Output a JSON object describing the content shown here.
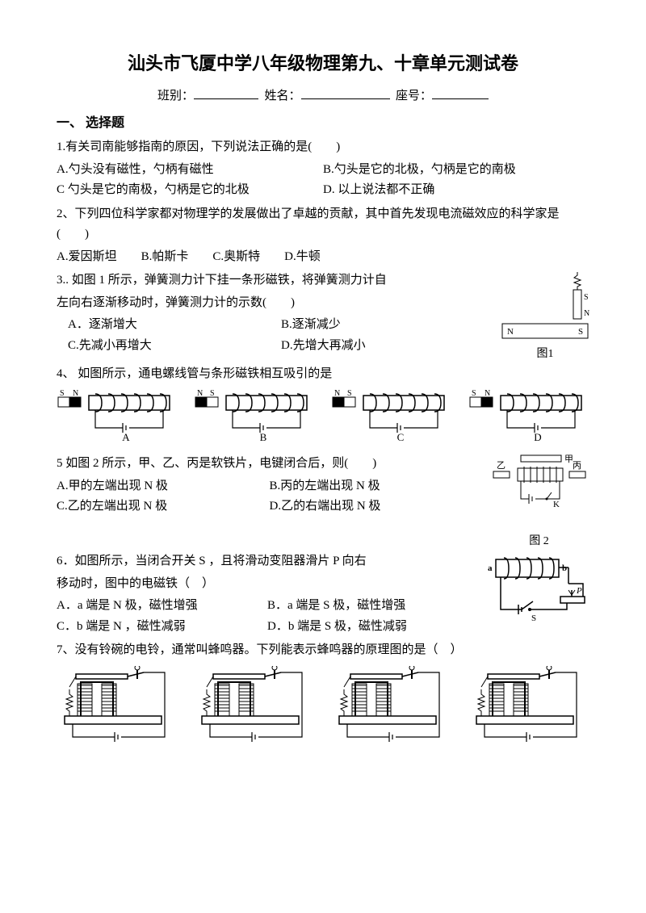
{
  "title": "汕头市飞厦中学八年级物理第九、十章单元测试卷",
  "header": {
    "class_label": "班别：",
    "name_label": "姓名：",
    "seat_label": "座号："
  },
  "section1": "一、 选择题",
  "q1": {
    "stem": "1.有关司南能够指南的原因，下列说法正确的是(　　)",
    "a": "A.勺头没有磁性，勺柄有磁性",
    "b": "B.勺头是它的北极，勺柄是它的南极",
    "c": "C 勺头是它的南极，勺柄是它的北极",
    "d": "D. 以上说法都不正确"
  },
  "q2": {
    "stem": "2、下列四位科学家都对物理学的发展做出了卓越的贡献，其中首先发现电流磁效应的科学家是(　　)",
    "a": "A.爱因斯坦",
    "b": "B.帕斯卡",
    "c": "C.奥斯特",
    "d": "D.牛顿"
  },
  "q3": {
    "stem1": "3.. 如图 1 所示，弹簧测力计下挂一条形磁铁，将弹簧测力计自",
    "stem2": "左向右逐渐移动时，弹簧测力计的示数(　　)",
    "a": "A．逐渐增大",
    "b": "B.逐渐减少",
    "c": "C.先减小再增大",
    "d": "D.先增大再减小",
    "caption": "图1",
    "labelS": "S",
    "labelN": "N"
  },
  "q4": {
    "stem": "4、 如图所示，通电螺线管与条形磁铁相互吸引的是",
    "opts": [
      "A",
      "B",
      "C",
      "D"
    ],
    "mags": [
      [
        "S",
        "N"
      ],
      [
        "N",
        "S"
      ],
      [
        "N",
        "S"
      ],
      [
        "S",
        "N"
      ]
    ]
  },
  "q5": {
    "stem": "5 如图 2 所示，甲、乙、丙是软铁片，电键闭合后，则(　　)",
    "a": "A.甲的左端出现 N 极",
    "b": "B.丙的左端出现 N 极",
    "c": "C.乙的左端出现 N 极",
    "d": "D.乙的右端出现 N 极",
    "caption": "图 2",
    "labels": {
      "jia": "甲",
      "yi": "乙",
      "bing": "丙",
      "k": "K"
    }
  },
  "q6": {
    "stem1": "6．如图所示，当闭合开关 S ，且将滑动变阻器滑片 P 向右",
    "stem2": "移动时，图中的电磁铁（　）",
    "a": "A．a 端是 N 极，磁性增强",
    "b": "B．a 端是 S 极，磁性增强",
    "c": "C．b 端是 N ，磁性减弱",
    "d": "D．b 端是 S 极，磁性减弱",
    "labels": {
      "a": "a",
      "b": "b",
      "s": "S",
      "p": "P"
    }
  },
  "q7": {
    "stem": "7、没有铃碗的电铃，通常叫蜂鸣器。下列能表示蜂鸣器的原理图的是（　）"
  },
  "colors": {
    "stroke": "#000000",
    "fill_black": "#000000",
    "fill_white": "#ffffff"
  }
}
